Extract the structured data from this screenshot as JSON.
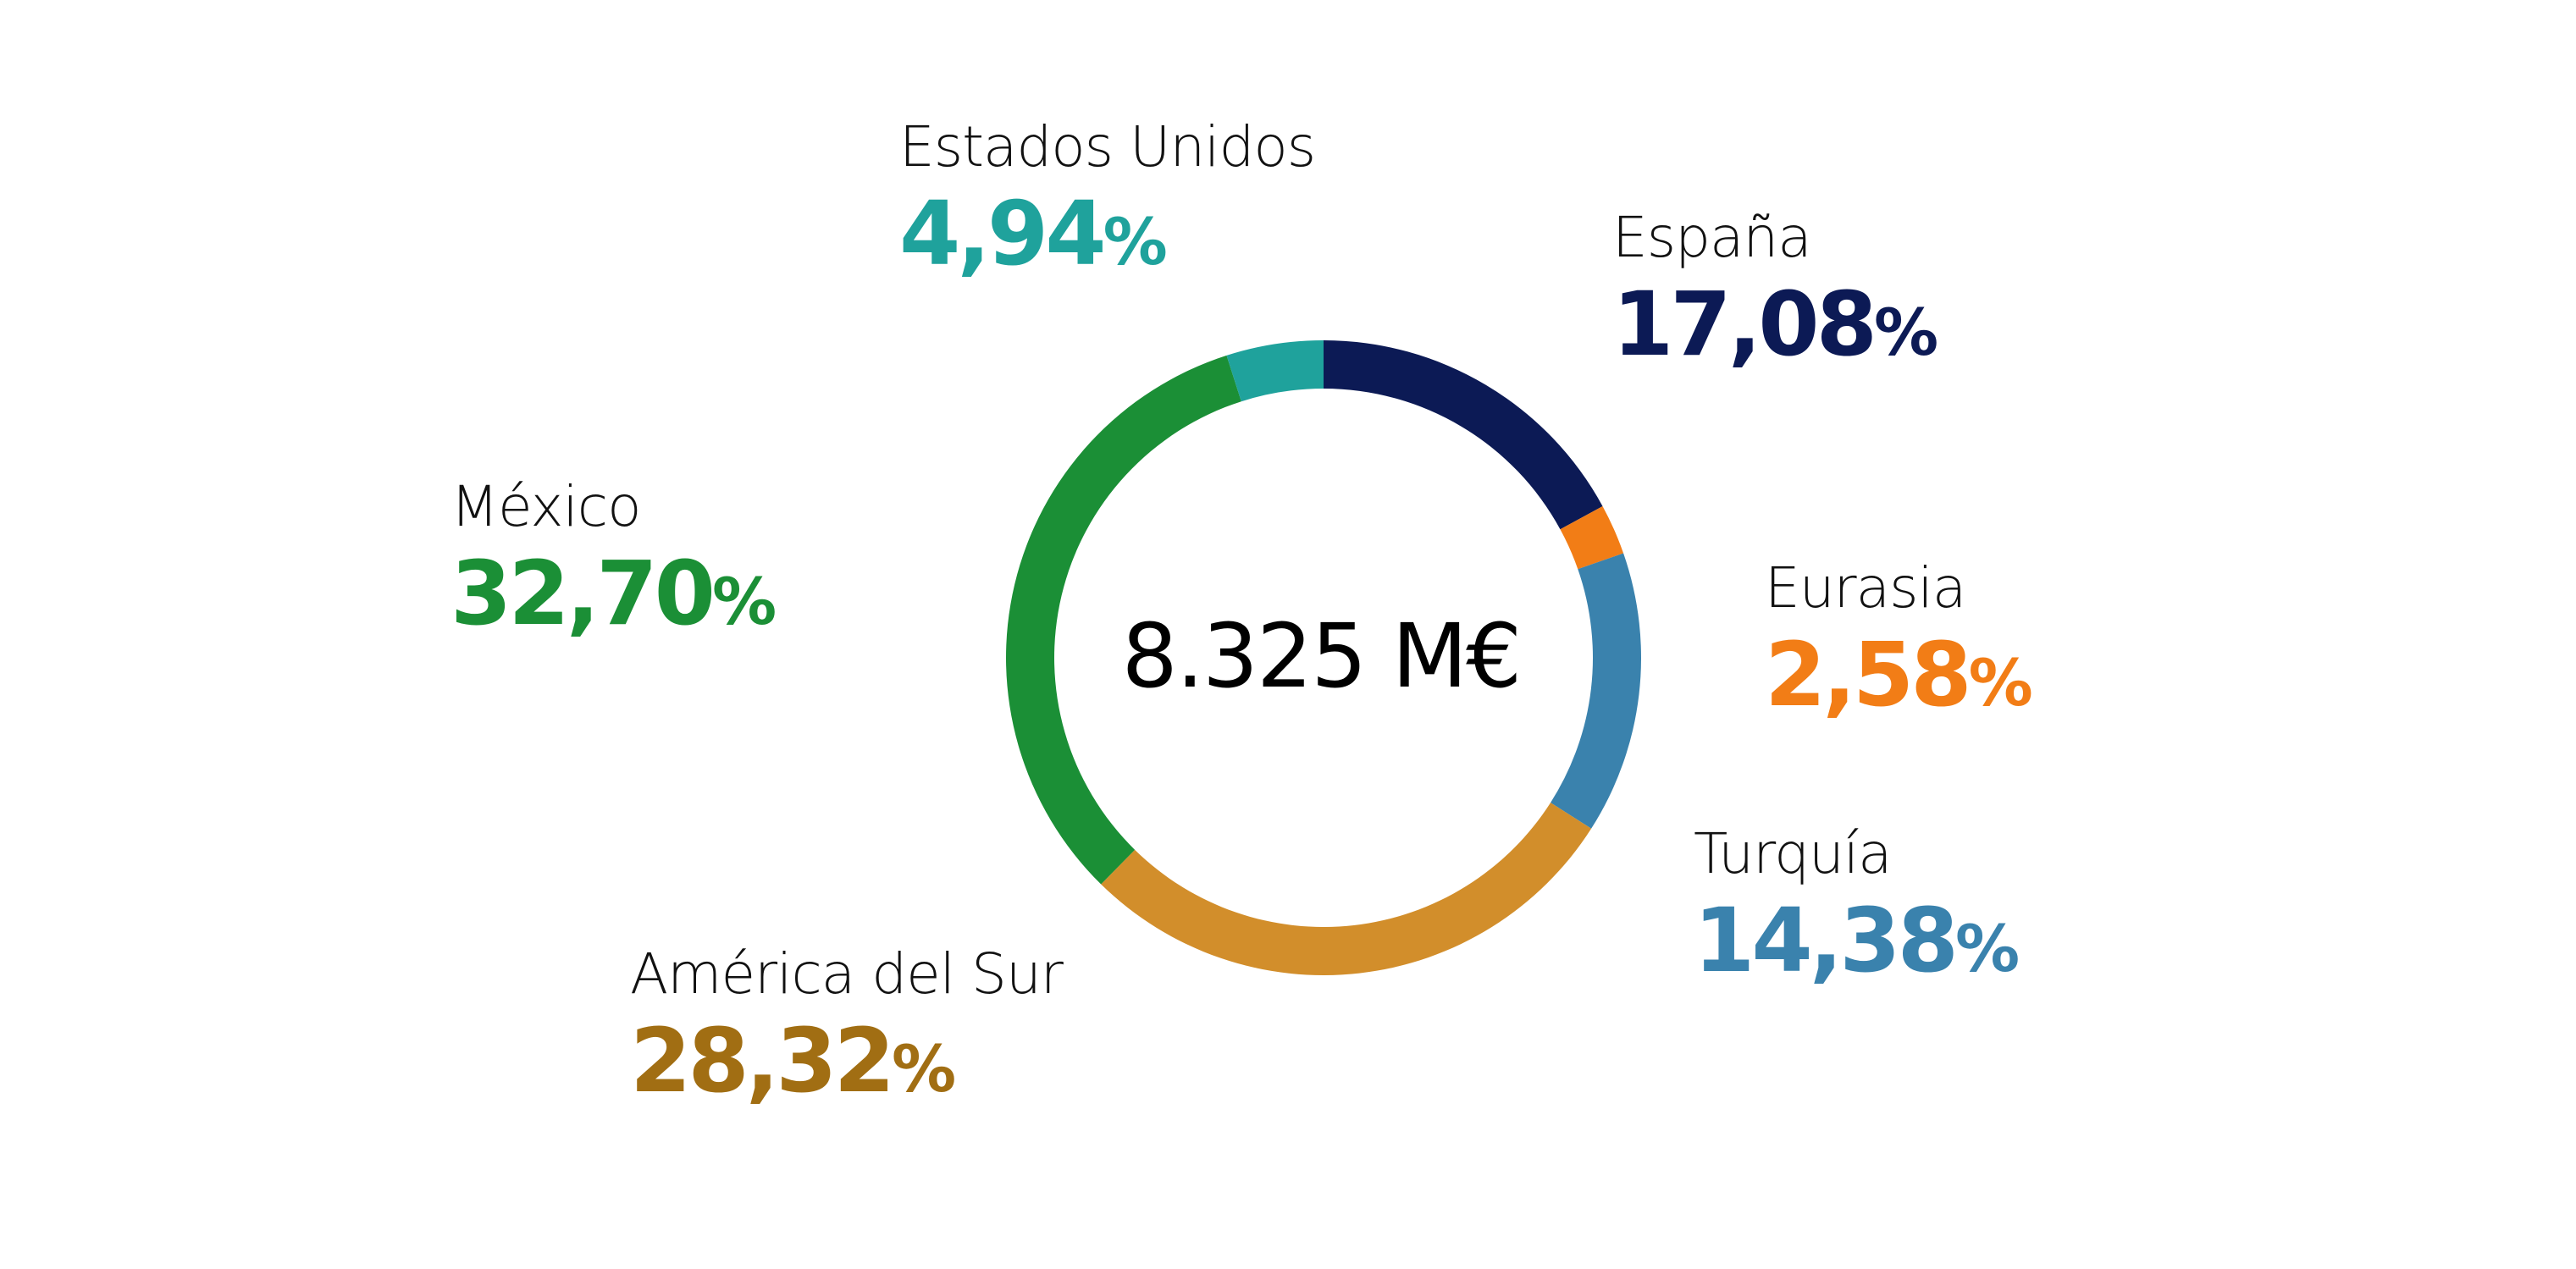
{
  "chart_data": {
    "type": "pie",
    "donut": true,
    "center_label": "8.325 M€",
    "unit": "%",
    "slices": [
      {
        "name": "España",
        "value": 17.08,
        "label": "17,08",
        "color": "#0c1a55"
      },
      {
        "name": "Eurasia",
        "value": 2.58,
        "label": "2,58",
        "color": "#f27d16"
      },
      {
        "name": "Turquía",
        "value": 14.38,
        "label": "14,38",
        "color": "#3a82ad"
      },
      {
        "name": "América del Sur",
        "value": 28.32,
        "label": "28,32",
        "color": "#d28e2b"
      },
      {
        "name": "México",
        "value": 32.7,
        "label": "32,70",
        "color": "#1b8f36"
      },
      {
        "name": "Estados Unidos",
        "value": 4.94,
        "label": "4,94",
        "color": "#1fa29c"
      }
    ],
    "value_colors": {
      "España": "#0c1a55",
      "Eurasia": "#f27d16",
      "Turquía": "#3a82ad",
      "América del Sur": "#a16e13",
      "México": "#1b8f36",
      "Estados Unidos": "#1fa29c"
    }
  }
}
